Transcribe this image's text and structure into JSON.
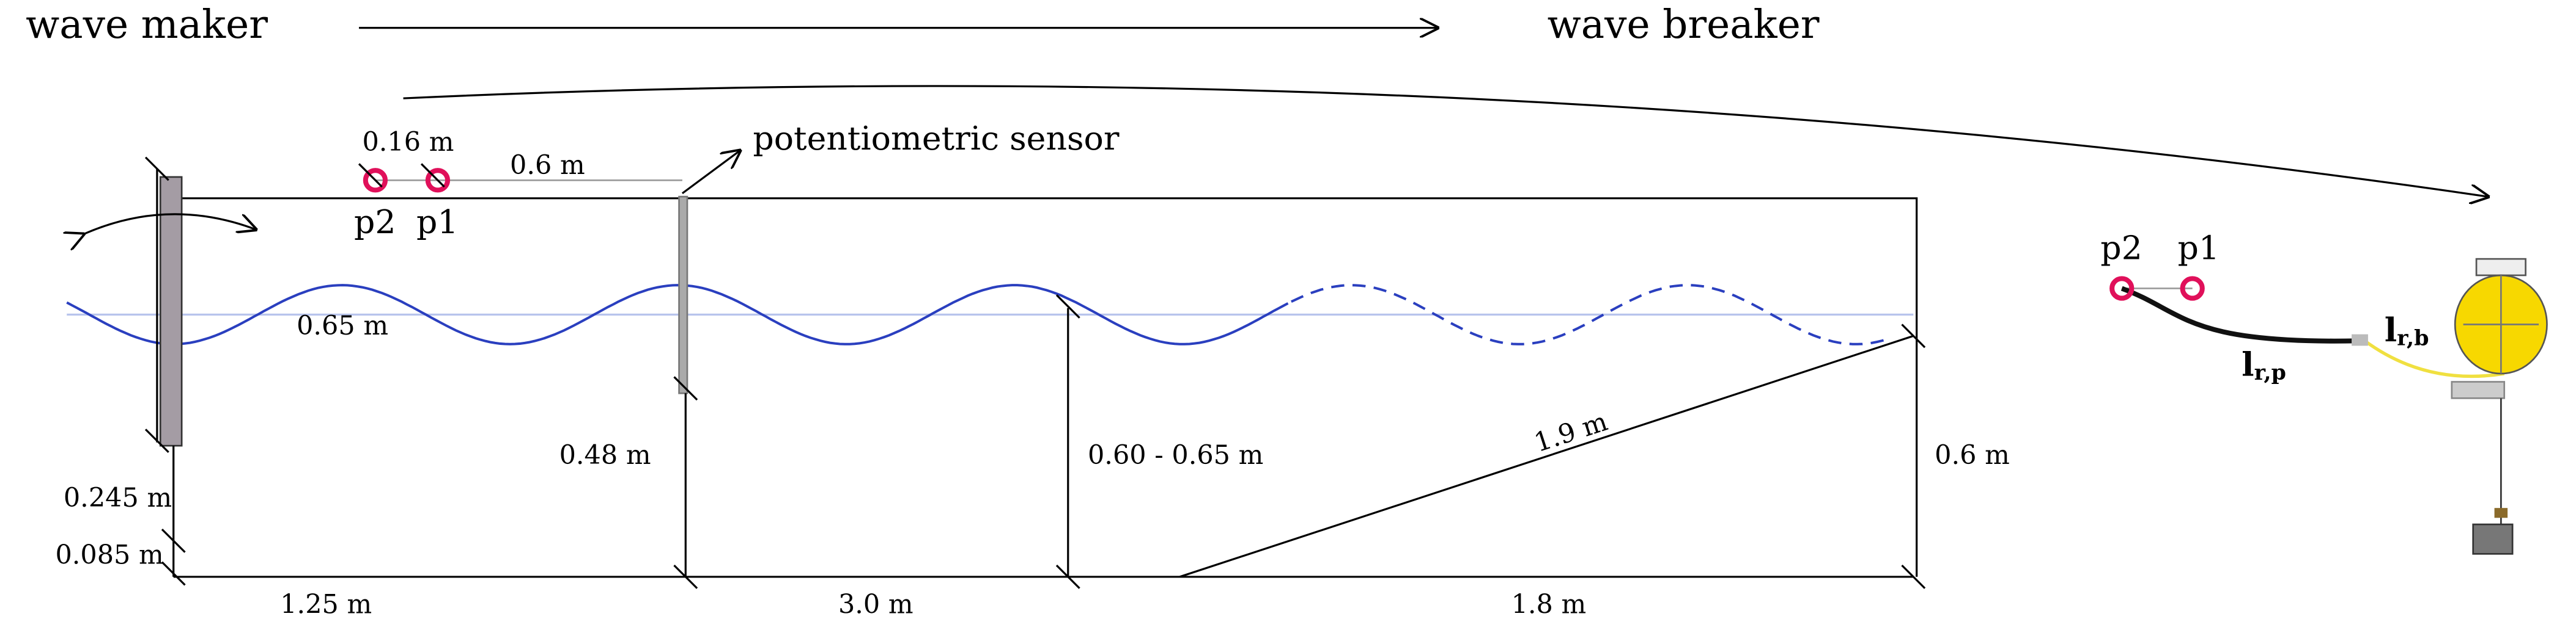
{
  "header": {
    "left": "wave maker",
    "right": "wave breaker"
  },
  "flume": {
    "probes": [
      "p2",
      "p1"
    ],
    "probe_spacing": "0.16 m",
    "probe_to_sensor": "0.6 m",
    "sensor": "potentiometric sensor",
    "wave_height": "0.65 m",
    "depth_at_sensor": "0.48 m",
    "depth_at_slope": "0.60 - 0.65 m",
    "slope_length": "1.9 m",
    "depth_at_end": "0.6 m",
    "paddle_height": "0.245 m",
    "paddle_base": "0.085 m",
    "span_1": "1.25 m",
    "span_2": "3.0 m",
    "span_3": "1.8 m"
  },
  "buoy": {
    "probes": [
      "p2",
      "p1"
    ],
    "cable_b": {
      "main": "l",
      "sub": "r,b"
    },
    "cable_p": {
      "main": "l",
      "sub": "r,p"
    }
  }
}
